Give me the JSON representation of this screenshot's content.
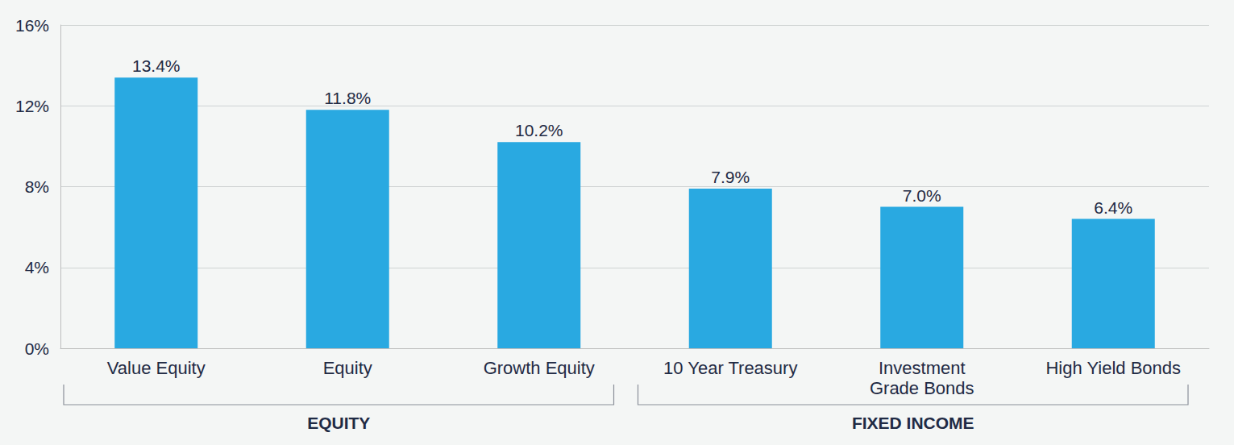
{
  "chart_data": {
    "type": "bar",
    "categories": [
      "Value Equity",
      "Equity",
      "Growth Equity",
      "10 Year Treasury",
      "Investment Grade Bonds",
      "High Yield Bonds"
    ],
    "values": [
      13.4,
      11.8,
      10.2,
      7.9,
      7.0,
      6.4
    ],
    "value_labels": [
      "13.4%",
      "11.8%",
      "10.2%",
      "7.9%",
      "7.0%",
      "6.4%"
    ],
    "data_labels": true,
    "color": "#29a9e1",
    "ylim": [
      0,
      16
    ],
    "yticks": [
      {
        "value": 0,
        "label": "0%"
      },
      {
        "value": 4,
        "label": "4%"
      },
      {
        "value": 8,
        "label": "8%"
      },
      {
        "value": 12,
        "label": "12%"
      },
      {
        "value": 16,
        "label": "16%"
      }
    ],
    "grid": true,
    "groups": [
      {
        "name": "EQUITY",
        "categories": [
          "Value Equity",
          "Equity",
          "Growth Equity"
        ]
      },
      {
        "name": "FIXED INCOME",
        "categories": [
          "10 Year Treasury",
          "Investment Grade Bonds",
          "High Yield Bonds"
        ]
      }
    ]
  }
}
